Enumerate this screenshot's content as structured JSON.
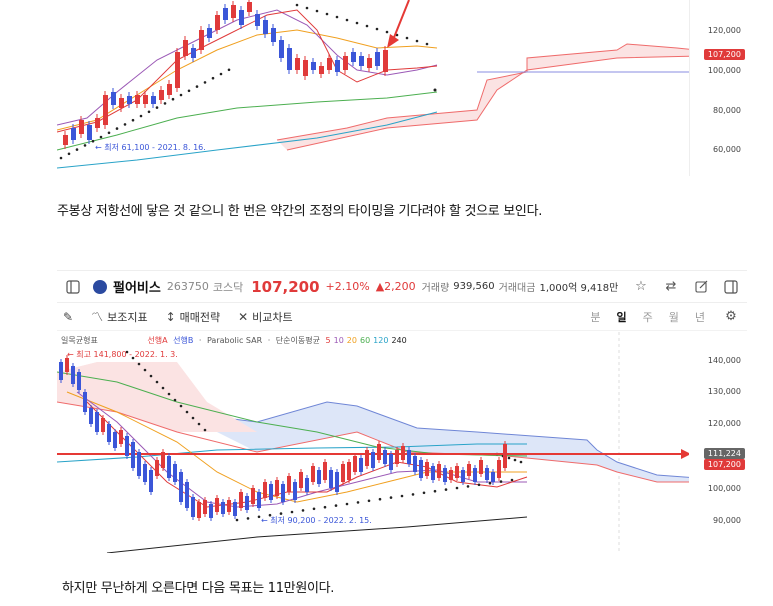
{
  "top_chart": {
    "axis_labels": [
      "120,000",
      "100,000",
      "80,000",
      "60,000"
    ],
    "price_tag": "107,200",
    "low_annotation": "최저 61,100 - 2021. 8. 16."
  },
  "paragraph1": "주봉상 저항선에 닿은 것 같으니 한 번은 약간의 조정의 타이밍을 기다려야 할 것으로 보인다.",
  "stock": {
    "name": "펄어비스",
    "code": "263750",
    "market": "코스닥",
    "price": "107,200",
    "change_pct": "+2.10%",
    "change_abs": "▲2,200",
    "volume_label": "거래량",
    "volume": "939,560",
    "amount_label": "거래대금",
    "amount": "1,000억 9,418만"
  },
  "toolbar": {
    "indicator": "보조지표",
    "strategy": "매매전략",
    "compare": "비교차트"
  },
  "periods": [
    "분",
    "일",
    "주",
    "월",
    "년"
  ],
  "active_period": "일",
  "legend": {
    "ichimoku": "일목균형표",
    "lead_a": "선행A",
    "lead_b": "선행B",
    "psar": "Parabolic SAR",
    "ma": "단순이동평균",
    "ma_periods": [
      "5",
      "10",
      "20",
      "60",
      "120",
      "240"
    ],
    "ma_colors": [
      "#e03a3a",
      "#9b59b6",
      "#f0a020",
      "#4caf50",
      "#29a3c8",
      "#222222"
    ]
  },
  "chart2": {
    "high_annotation": "최고 141,800 - 2022. 1. 3.",
    "low_annotation": "최저 90,200 - 2022. 2. 15.",
    "axis_labels": [
      "140,000",
      "130,000",
      "120,000",
      "100,000",
      "90,000"
    ],
    "resistance_tag": "111,224",
    "price_tag": "107,200"
  },
  "paragraph2": "하지만 무난하게 오른다면 다음 목표는 11만원이다.",
  "colors": {
    "up": "#e03a3a",
    "down": "#3b56d8",
    "cloud_red": "#fbe3e3",
    "cloud_blue": "#dde6f8"
  }
}
